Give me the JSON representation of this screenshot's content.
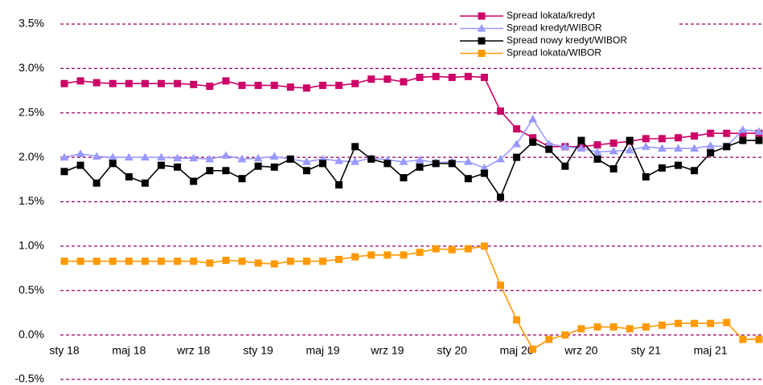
{
  "chart_data": {
    "type": "line",
    "categories": [
      "sty 18",
      null,
      null,
      null,
      "maj 18",
      null,
      null,
      null,
      "wrz 18",
      null,
      null,
      null,
      "sty 19",
      null,
      null,
      null,
      "maj 19",
      null,
      null,
      null,
      "wrz 19",
      null,
      null,
      null,
      "sty 20",
      null,
      null,
      null,
      "maj 20",
      null,
      null,
      null,
      "wrz 20",
      null,
      null,
      null,
      "sty 21",
      null,
      null,
      null,
      "maj 21",
      null,
      null,
      null
    ],
    "series": [
      {
        "name": "Spread lokata/kredyt",
        "color": "#cc0066",
        "marker": "square",
        "values": [
          2.83,
          2.86,
          2.84,
          2.83,
          2.83,
          2.83,
          2.83,
          2.83,
          2.82,
          2.8,
          2.86,
          2.81,
          2.81,
          2.81,
          2.79,
          2.78,
          2.81,
          2.81,
          2.83,
          2.88,
          2.88,
          2.85,
          2.9,
          2.91,
          2.9,
          2.91,
          2.9,
          2.52,
          2.32,
          2.22,
          2.12,
          2.12,
          2.12,
          2.14,
          2.16,
          2.18,
          2.21,
          2.21,
          2.22,
          2.24,
          2.27,
          2.27,
          2.27,
          2.27
        ]
      },
      {
        "name": "Spread kredyt/WIBOR",
        "color": "#9999ff",
        "marker": "triangle",
        "values": [
          2.0,
          2.04,
          2.01,
          2.0,
          2.0,
          2.0,
          2.0,
          1.99,
          1.99,
          1.98,
          2.02,
          1.98,
          1.99,
          2.01,
          1.98,
          1.95,
          1.98,
          1.96,
          1.95,
          1.99,
          1.97,
          1.95,
          1.97,
          1.94,
          1.95,
          1.95,
          1.88,
          1.98,
          2.15,
          2.43,
          2.15,
          2.12,
          2.1,
          2.06,
          2.07,
          2.08,
          2.12,
          2.1,
          2.1,
          2.1,
          2.13,
          2.12,
          2.31,
          2.29
        ]
      },
      {
        "name": "Spread nowy kredyt/WIBOR",
        "color": "#000000",
        "marker": "square",
        "values": [
          1.84,
          1.91,
          1.71,
          1.93,
          1.78,
          1.71,
          1.91,
          1.89,
          1.73,
          1.85,
          1.85,
          1.76,
          1.9,
          1.89,
          1.98,
          1.85,
          1.93,
          1.69,
          2.12,
          1.98,
          1.93,
          1.77,
          1.89,
          1.93,
          1.93,
          1.76,
          1.82,
          1.55,
          2.0,
          2.17,
          2.09,
          1.9,
          2.19,
          1.98,
          1.87,
          2.19,
          1.78,
          1.88,
          1.91,
          1.85,
          2.05,
          2.12,
          2.19,
          2.19
        ]
      },
      {
        "name": "Spread lokata/WIBOR",
        "color": "#ff9900",
        "marker": "square",
        "values": [
          0.83,
          0.83,
          0.83,
          0.83,
          0.83,
          0.83,
          0.83,
          0.83,
          0.83,
          0.81,
          0.84,
          0.83,
          0.81,
          0.8,
          0.83,
          0.83,
          0.83,
          0.85,
          0.88,
          0.9,
          0.9,
          0.9,
          0.93,
          0.97,
          0.96,
          0.97,
          1.0,
          0.56,
          0.17,
          -0.16,
          -0.05,
          0.0,
          0.07,
          0.09,
          0.09,
          0.07,
          0.09,
          0.11,
          0.13,
          0.13,
          0.13,
          0.14,
          -0.05,
          -0.05
        ]
      }
    ],
    "ylim": [
      -0.5,
      3.5
    ],
    "yticks": [
      {
        "value": -0.5,
        "label": "-0.5%"
      },
      {
        "value": 0,
        "label": "0.0%"
      },
      {
        "value": 0.5,
        "label": "0.5%"
      },
      {
        "value": 1,
        "label": "1.0%"
      },
      {
        "value": 1.5,
        "label": "1.5%"
      },
      {
        "value": 2,
        "label": "2.0%"
      },
      {
        "value": 2.5,
        "label": "2.5%"
      },
      {
        "value": 3,
        "label": "3.0%"
      },
      {
        "value": 3.5,
        "label": "3.5%"
      }
    ],
    "grid": true,
    "grid_color": "#990066",
    "legend": "upper right"
  }
}
